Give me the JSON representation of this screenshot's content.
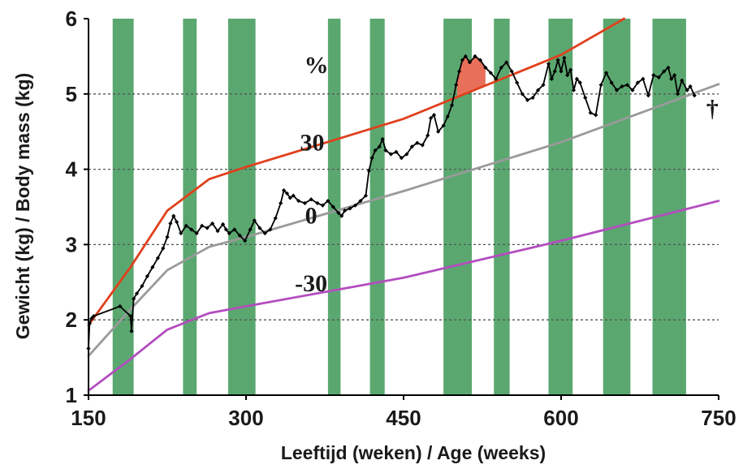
{
  "chart_data": {
    "type": "line",
    "xlabel": "Leeftijd (weken)  /  Age (weeks)",
    "ylabel": "Gewicht (kg)  /  Body mass (kg)",
    "xlim": [
      150,
      750
    ],
    "ylim": [
      1,
      6
    ],
    "xticks": [
      "150",
      "300",
      "450",
      "600",
      "750"
    ],
    "yticks": [
      "1",
      "2",
      "3",
      "4",
      "5",
      "6"
    ],
    "grid": "dashed horizontal at y = 2, 3, 4, 5",
    "colors": {
      "band": "#5aa870",
      "upper": "#e0401c",
      "reference": "#9a9a9a",
      "lower": "#b44dbf",
      "observed": "#000000",
      "highlight": "#e8705a"
    },
    "bands": [
      [
        173,
        193
      ],
      [
        240,
        253
      ],
      [
        283,
        309
      ],
      [
        378,
        390
      ],
      [
        418,
        432
      ],
      [
        488,
        515
      ],
      [
        536,
        551
      ],
      [
        588,
        611
      ],
      [
        640,
        666
      ],
      [
        687,
        719
      ]
    ],
    "series": [
      {
        "key": "upper",
        "x": [
          150,
          190,
          225,
          265,
          300,
          450,
          600,
          660
        ],
        "y": [
          1.93,
          2.7,
          3.45,
          3.87,
          4.03,
          4.67,
          5.52,
          6.0
        ]
      },
      {
        "key": "reference",
        "x": [
          150,
          190,
          225,
          265,
          300,
          450,
          600,
          750
        ],
        "y": [
          1.52,
          2.14,
          2.66,
          2.97,
          3.1,
          3.71,
          4.36,
          5.13
        ]
      },
      {
        "key": "lower",
        "x": [
          150,
          190,
          225,
          265,
          300,
          450,
          600,
          750
        ],
        "y": [
          1.06,
          1.48,
          1.87,
          2.09,
          2.18,
          2.56,
          3.05,
          3.58
        ]
      },
      {
        "key": "observed",
        "x": [
          150,
          151,
          153,
          155,
          180,
          190,
          191,
          193,
          196,
          201,
          206,
          211,
          216,
          221,
          225,
          228,
          231,
          234,
          238,
          243,
          248,
          253,
          258,
          263,
          268,
          273,
          278,
          281,
          284,
          289,
          294,
          299,
          304,
          308,
          313,
          318,
          323,
          328,
          333,
          336,
          339,
          342,
          345,
          350,
          356,
          362,
          368,
          373,
          378,
          383,
          388,
          391,
          394,
          399,
          404,
          409,
          414,
          417,
          420,
          423,
          427,
          430,
          433,
          438,
          443,
          448,
          453,
          458,
          463,
          468,
          473,
          476,
          479,
          483,
          488,
          492,
          496,
          500,
          503,
          506,
          509,
          513,
          518,
          523,
          528,
          533,
          538,
          543,
          548,
          553,
          558,
          563,
          568,
          573,
          578,
          583,
          588,
          591,
          594,
          597,
          600,
          603,
          606,
          609,
          612,
          615,
          618,
          623,
          628,
          633,
          638,
          643,
          648,
          653,
          658,
          663,
          668,
          673,
          678,
          683,
          688,
          693,
          698,
          702,
          705,
          708,
          711,
          715,
          720,
          723,
          727
        ],
        "y": [
          1.62,
          1.95,
          2.02,
          2.05,
          2.18,
          2.05,
          1.85,
          2.28,
          2.35,
          2.45,
          2.58,
          2.7,
          2.82,
          2.95,
          3.1,
          3.28,
          3.38,
          3.3,
          3.15,
          3.25,
          3.2,
          3.15,
          3.25,
          3.22,
          3.28,
          3.18,
          3.27,
          3.2,
          3.15,
          3.2,
          3.12,
          3.05,
          3.2,
          3.32,
          3.22,
          3.15,
          3.2,
          3.35,
          3.55,
          3.72,
          3.68,
          3.62,
          3.65,
          3.58,
          3.55,
          3.6,
          3.55,
          3.52,
          3.58,
          3.5,
          3.42,
          3.38,
          3.45,
          3.48,
          3.52,
          3.58,
          3.65,
          3.98,
          4.15,
          4.25,
          4.3,
          4.4,
          4.25,
          4.2,
          4.23,
          4.15,
          4.2,
          4.3,
          4.35,
          4.32,
          4.45,
          4.68,
          4.72,
          4.5,
          4.58,
          4.7,
          4.85,
          5.12,
          5.3,
          5.45,
          5.5,
          5.42,
          5.5,
          5.45,
          5.35,
          5.28,
          5.2,
          5.35,
          5.42,
          5.3,
          5.15,
          5.0,
          4.92,
          4.95,
          5.05,
          5.12,
          5.4,
          5.2,
          5.3,
          5.45,
          5.3,
          5.48,
          5.25,
          5.32,
          5.05,
          5.2,
          5.15,
          4.95,
          4.75,
          4.72,
          5.12,
          5.28,
          5.15,
          5.05,
          5.1,
          5.12,
          5.05,
          5.15,
          5.2,
          4.98,
          5.25,
          5.22,
          5.3,
          5.35,
          5.2,
          5.25,
          5.0,
          5.18,
          5.05,
          5.1,
          4.98
        ]
      }
    ],
    "highlight_range": [
      501,
      528
    ],
    "annotations": [
      {
        "text": "%",
        "x": 367,
        "y": 5.28
      },
      {
        "text": "30",
        "x": 363,
        "y": 4.25
      },
      {
        "text": "0",
        "x": 362,
        "y": 3.28
      },
      {
        "text": "-30",
        "x": 362,
        "y": 2.38
      },
      {
        "text": "†",
        "x": 744,
        "y": 4.7
      }
    ]
  }
}
